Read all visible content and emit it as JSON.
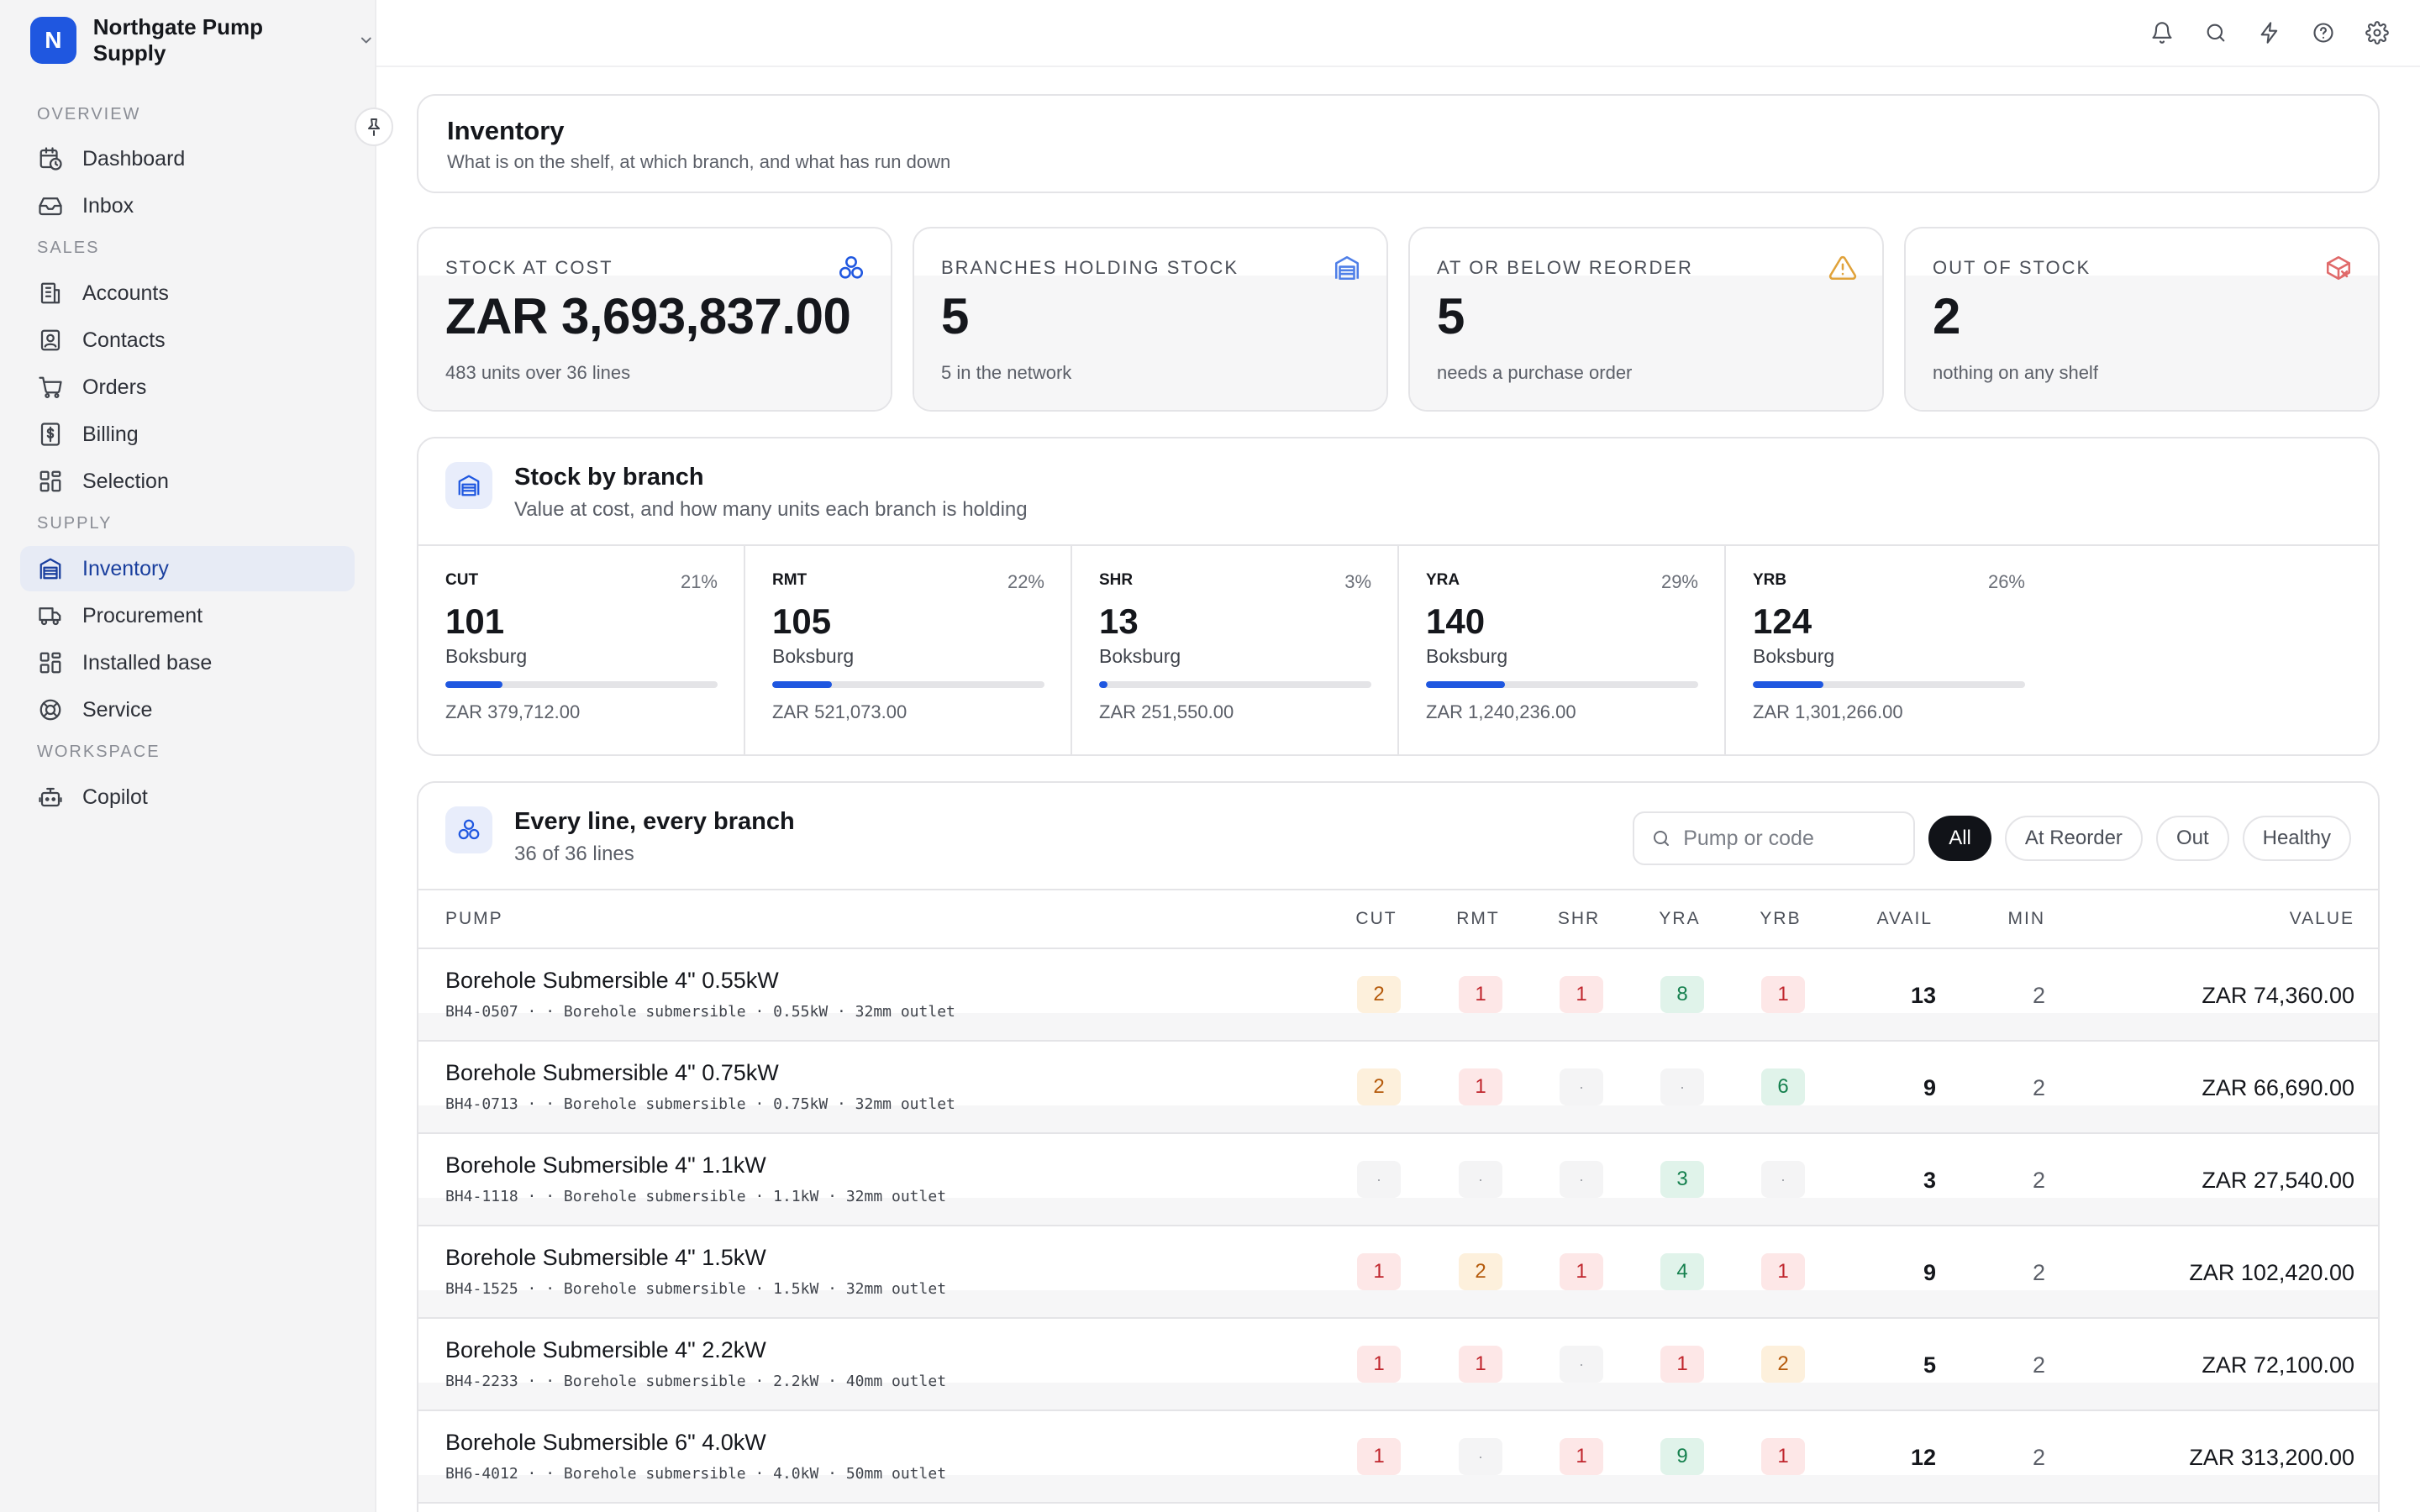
{
  "brand": {
    "initial": "N",
    "name": "Northgate Pump Supply"
  },
  "sidebar": {
    "sections": [
      {
        "label": "OVERVIEW",
        "items": [
          {
            "label": "Dashboard",
            "icon": "calendar-clock-icon"
          },
          {
            "label": "Inbox",
            "icon": "inbox-icon"
          }
        ]
      },
      {
        "label": "SALES",
        "items": [
          {
            "label": "Accounts",
            "icon": "building-icon"
          },
          {
            "label": "Contacts",
            "icon": "contact-icon"
          },
          {
            "label": "Orders",
            "icon": "cart-icon"
          },
          {
            "label": "Billing",
            "icon": "dollar-receipt-icon"
          },
          {
            "label": "Selection",
            "icon": "grid-icon"
          }
        ]
      },
      {
        "label": "SUPPLY",
        "items": [
          {
            "label": "Inventory",
            "icon": "warehouse-icon",
            "active": true
          },
          {
            "label": "Procurement",
            "icon": "truck-icon"
          },
          {
            "label": "Installed base",
            "icon": "grid-icon"
          },
          {
            "label": "Service",
            "icon": "lifebuoy-icon"
          }
        ]
      },
      {
        "label": "WORKSPACE",
        "items": [
          {
            "label": "Copilot",
            "icon": "bot-icon"
          }
        ]
      }
    ]
  },
  "topbar": {
    "icons": [
      "bell-icon",
      "search-icon",
      "lightning-icon",
      "help-icon",
      "gear-icon"
    ]
  },
  "header": {
    "title": "Inventory",
    "subtitle": "What is on the shelf, at which branch, and what has run down"
  },
  "kpis": [
    {
      "label": "STOCK AT COST",
      "value": "ZAR 3,693,837.00",
      "sub": "483 units over 36 lines",
      "icon": "boxes-icon",
      "icon_color": "#1f57e0"
    },
    {
      "label": "BRANCHES HOLDING STOCK",
      "value": "5",
      "sub": "5 in the network",
      "icon": "warehouse-icon",
      "icon_color": "#4f7fe8"
    },
    {
      "label": "AT OR BELOW REORDER",
      "value": "5",
      "sub": "needs a purchase order",
      "icon": "warning-icon",
      "icon_color": "#e0a23a"
    },
    {
      "label": "OUT OF STOCK",
      "value": "2",
      "sub": "nothing on any shelf",
      "icon": "package-x-icon",
      "icon_color": "#e06a6a"
    }
  ],
  "branches": {
    "title": "Stock by branch",
    "subtitle": "Value at cost, and how many units each branch is holding",
    "items": [
      {
        "code": "CUT",
        "pct": "21%",
        "share": 0.21,
        "units": "101",
        "location": "Boksburg",
        "value": "ZAR 379,712.00"
      },
      {
        "code": "RMT",
        "pct": "22%",
        "share": 0.22,
        "units": "105",
        "location": "Boksburg",
        "value": "ZAR 521,073.00"
      },
      {
        "code": "SHR",
        "pct": "3%",
        "share": 0.03,
        "units": "13",
        "location": "Boksburg",
        "value": "ZAR 251,550.00"
      },
      {
        "code": "YRA",
        "pct": "29%",
        "share": 0.29,
        "units": "140",
        "location": "Boksburg",
        "value": "ZAR 1,240,236.00"
      },
      {
        "code": "YRB",
        "pct": "26%",
        "share": 0.26,
        "units": "124",
        "location": "Boksburg",
        "value": "ZAR 1,301,266.00"
      }
    ]
  },
  "lines": {
    "title": "Every line, every branch",
    "subtitle": "36 of 36 lines",
    "search_placeholder": "Pump or code",
    "filters": [
      {
        "label": "All",
        "active": true
      },
      {
        "label": "At Reorder"
      },
      {
        "label": "Out"
      },
      {
        "label": "Healthy"
      }
    ],
    "columns": {
      "pump": "PUMP",
      "cut": "CUT",
      "rmt": "RMT",
      "shr": "SHR",
      "yra": "YRA",
      "yrb": "YRB",
      "avail": "AVAIL",
      "min": "MIN",
      "value": "VALUE"
    },
    "rows": [
      {
        "name": "Borehole Submersible 4\" 0.55kW",
        "meta": "BH4-0507 · · Borehole submersible · 0.55kW · 32mm outlet",
        "stock": [
          {
            "v": "2",
            "s": "amber"
          },
          {
            "v": "1",
            "s": "red"
          },
          {
            "v": "1",
            "s": "red"
          },
          {
            "v": "8",
            "s": "green"
          },
          {
            "v": "1",
            "s": "red"
          }
        ],
        "avail": "13",
        "min": "2",
        "value": "ZAR 74,360.00"
      },
      {
        "name": "Borehole Submersible 4\" 0.75kW",
        "meta": "BH4-0713 · · Borehole submersible · 0.75kW · 32mm outlet",
        "stock": [
          {
            "v": "2",
            "s": "amber"
          },
          {
            "v": "1",
            "s": "red"
          },
          {
            "v": "·",
            "s": "empty"
          },
          {
            "v": "·",
            "s": "empty"
          },
          {
            "v": "6",
            "s": "green"
          }
        ],
        "avail": "9",
        "min": "2",
        "value": "ZAR 66,690.00"
      },
      {
        "name": "Borehole Submersible 4\" 1.1kW",
        "meta": "BH4-1118 · · Borehole submersible · 1.1kW · 32mm outlet",
        "stock": [
          {
            "v": "·",
            "s": "empty"
          },
          {
            "v": "·",
            "s": "empty"
          },
          {
            "v": "·",
            "s": "empty"
          },
          {
            "v": "3",
            "s": "green"
          },
          {
            "v": "·",
            "s": "empty"
          }
        ],
        "avail": "3",
        "min": "2",
        "value": "ZAR 27,540.00"
      },
      {
        "name": "Borehole Submersible 4\" 1.5kW",
        "meta": "BH4-1525 · · Borehole submersible · 1.5kW · 32mm outlet",
        "stock": [
          {
            "v": "1",
            "s": "red"
          },
          {
            "v": "2",
            "s": "amber"
          },
          {
            "v": "1",
            "s": "red"
          },
          {
            "v": "4",
            "s": "green"
          },
          {
            "v": "1",
            "s": "red"
          }
        ],
        "avail": "9",
        "min": "2",
        "value": "ZAR 102,420.00"
      },
      {
        "name": "Borehole Submersible 4\" 2.2kW",
        "meta": "BH4-2233 · · Borehole submersible · 2.2kW · 40mm outlet",
        "stock": [
          {
            "v": "1",
            "s": "red"
          },
          {
            "v": "1",
            "s": "red"
          },
          {
            "v": "·",
            "s": "empty"
          },
          {
            "v": "1",
            "s": "red"
          },
          {
            "v": "2",
            "s": "amber"
          }
        ],
        "avail": "5",
        "min": "2",
        "value": "ZAR 72,100.00"
      },
      {
        "name": "Borehole Submersible 6\" 4.0kW",
        "meta": "BH6-4012 · · Borehole submersible · 4.0kW · 50mm outlet",
        "stock": [
          {
            "v": "1",
            "s": "red"
          },
          {
            "v": "·",
            "s": "empty"
          },
          {
            "v": "1",
            "s": "red"
          },
          {
            "v": "9",
            "s": "green"
          },
          {
            "v": "1",
            "s": "red"
          }
        ],
        "avail": "12",
        "min": "2",
        "value": "ZAR 313,200.00"
      }
    ]
  }
}
